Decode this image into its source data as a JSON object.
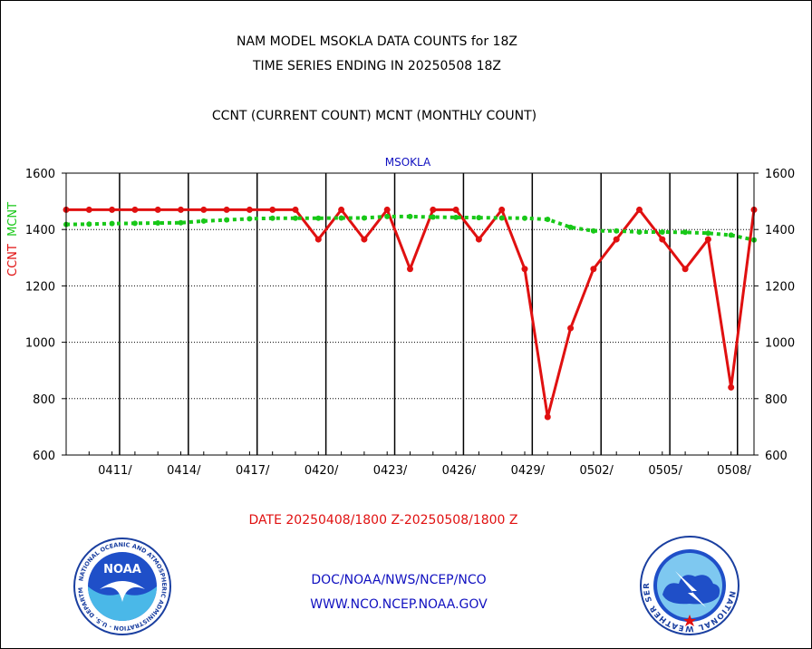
{
  "header": {
    "title_line1": "NAM MODEL MSOKLA DATA COUNTS for 18Z",
    "title_line2": "TIME SERIES ENDING IN 20250508 18Z",
    "subtitle": "CCNT (CURRENT COUNT) MCNT (MONTHLY COUNT)"
  },
  "chart_data": {
    "type": "line",
    "panel_label": "MSOKLA",
    "ylabel_ccnt": "CCNT",
    "ylabel_mcnt": "MCNT",
    "ylim": [
      600,
      1600
    ],
    "yticks": [
      "600",
      "800",
      "1000",
      "1200",
      "1400",
      "1600"
    ],
    "xtick_labels": [
      "0411/",
      "0414/",
      "0417/",
      "0420/",
      "0423/",
      "0426/",
      "0429/",
      "0502/",
      "0505/",
      "0508/"
    ],
    "grid": true,
    "series": [
      {
        "name": "CCNT",
        "color": "#e01010",
        "values": [
          1470,
          1470,
          1470,
          1470,
          1470,
          1470,
          1470,
          1470,
          1470,
          1470,
          1470,
          1365,
          1470,
          1365,
          1470,
          1260,
          1470,
          1470,
          1365,
          1470,
          1260,
          735,
          1050,
          1260,
          1365,
          1470,
          1365,
          1260,
          1365,
          840,
          1470
        ]
      },
      {
        "name": "MCNT",
        "color": "#18c818",
        "values": [
          1418,
          1419,
          1421,
          1422,
          1423,
          1424,
          1430,
          1434,
          1438,
          1440,
          1440,
          1440,
          1441,
          1441,
          1446,
          1446,
          1444,
          1443,
          1442,
          1441,
          1440,
          1436,
          1408,
          1395,
          1395,
          1391,
          1391,
          1390,
          1387,
          1380,
          1363
        ]
      }
    ]
  },
  "footer": {
    "date_range": "DATE 20250408/1800 Z-20250508/1800 Z",
    "link1": "DOC/NOAA/NWS/NCEP/NCO",
    "link2": "WWW.NCO.NCEP.NOAA.GOV"
  },
  "logos": {
    "noaa_text": "NOAA",
    "noaa_ring": "NATIONAL OCEANIC AND ATMOSPHERIC ADMINISTRATION · U.S. DEPARTMENT OF COMMERCE",
    "nws_ring": "NATIONAL WEATHER SERVICE"
  }
}
